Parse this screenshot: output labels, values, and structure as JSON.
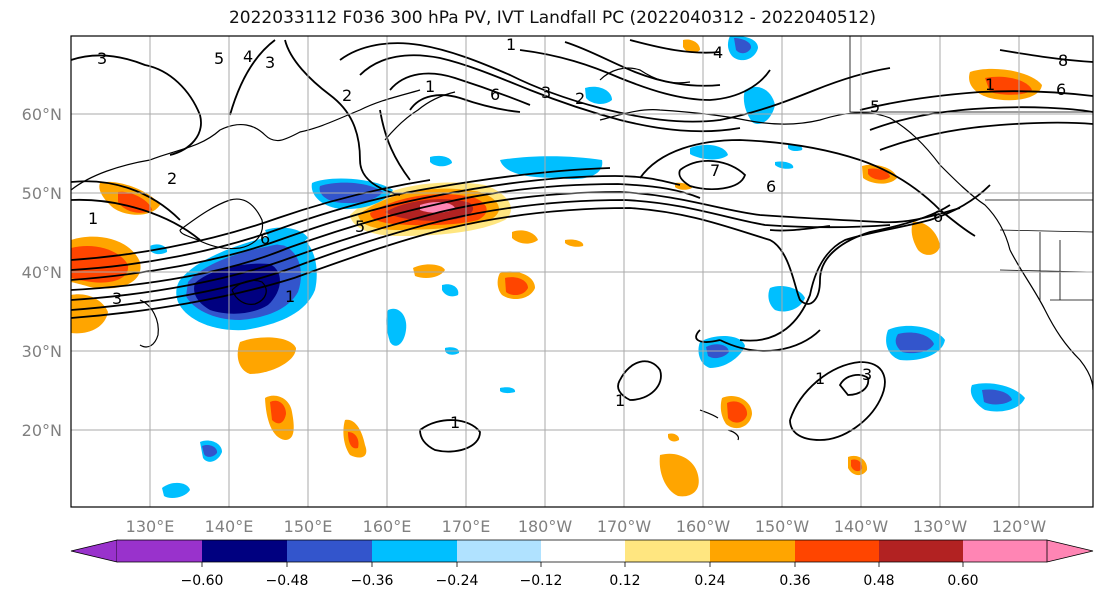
{
  "title": "2022033112 F036 300 hPa PV, IVT Landfall PC (2022040312 - 2022040512)",
  "map": {
    "lat_labels": [
      "20°N",
      "30°N",
      "40°N",
      "50°N",
      "60°N"
    ],
    "lon_labels": [
      "130°E",
      "140°E",
      "150°E",
      "160°E",
      "170°E",
      "180°W",
      "170°W",
      "160°W",
      "150°W",
      "140°W",
      "130°W",
      "120°W"
    ],
    "contour_labels": [
      "3",
      "5",
      "4",
      "3",
      "2",
      "1",
      "3",
      "2",
      "1",
      "6",
      "5",
      "7",
      "6",
      "6",
      "5",
      "4",
      "6",
      "8",
      "2",
      "1",
      "1",
      "3",
      "6",
      "1",
      "1",
      "1",
      "3",
      "1"
    ]
  },
  "colorbar": {
    "ticks": [
      "−0.60",
      "−0.48",
      "−0.36",
      "−0.24",
      "−0.12",
      "0.12",
      "0.24",
      "0.36",
      "0.48",
      "0.60"
    ],
    "colors": [
      "#9932cc",
      "#000080",
      "#3355cc",
      "#00bfff",
      "#b0e2ff",
      "#ffffff",
      "#ffe680",
      "#ffa500",
      "#ff4500",
      "#b22222",
      "#ff85b4"
    ]
  },
  "colors": {
    "label_gray": "#808080",
    "contour": "#000000",
    "grid": "#aaaaaa"
  }
}
